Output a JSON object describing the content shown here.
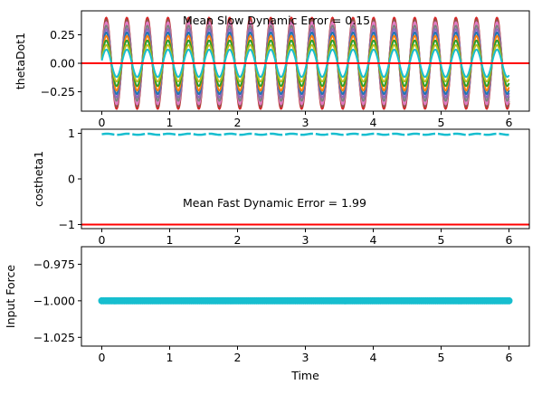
{
  "chart_data": [
    {
      "type": "line",
      "ylabel": "thetaDot1",
      "xlim": [
        -0.3,
        6.3
      ],
      "ylim": [
        -0.42,
        0.46
      ],
      "xticks": [
        0,
        1,
        2,
        3,
        4,
        5,
        6
      ],
      "xtick_labels": [
        "0",
        "1",
        "2",
        "3",
        "4",
        "5",
        "6"
      ],
      "yticks": [
        0.25,
        0.0,
        -0.25
      ],
      "ytick_labels": [
        "0.25",
        "0.00",
        "−0.25"
      ],
      "annotation": "Mean Slow Dynamic Error = 0.15",
      "reference_line": {
        "y": 0.0,
        "color": "#ff0000"
      },
      "oscillation": {
        "frequency": 3.3,
        "t_start": 0,
        "t_end": 6
      },
      "series_amplitudes": [
        0.4,
        0.38,
        0.36,
        0.33,
        0.3,
        0.27,
        0.24,
        0.2,
        0.16,
        0.12
      ],
      "series_colors": [
        "#d62728",
        "#8c564b",
        "#e377c2",
        "#7f7f7f",
        "#9467bd",
        "#1f77b4",
        "#ff7f0e",
        "#2ca02c",
        "#bcbd22",
        "#17becf"
      ]
    },
    {
      "type": "line",
      "ylabel": "costheta1",
      "xlim": [
        -0.3,
        6.3
      ],
      "ylim": [
        -1.09,
        1.09
      ],
      "xticks": [
        0,
        1,
        2,
        3,
        4,
        5,
        6
      ],
      "xtick_labels": [
        "0",
        "1",
        "2",
        "3",
        "4",
        "5",
        "6"
      ],
      "yticks": [
        1,
        0,
        -1
      ],
      "ytick_labels": [
        "1",
        "0",
        "−1"
      ],
      "annotation": "Mean Fast Dynamic Error = 1.99",
      "reference_line": {
        "y": -1.0,
        "color": "#ff0000"
      },
      "series_level": 0.98,
      "series_color": "#17becf"
    },
    {
      "type": "scatter",
      "xlabel": "Time",
      "ylabel": "Input Force",
      "xlim": [
        -0.3,
        6.3
      ],
      "ylim": [
        -1.031,
        -0.963
      ],
      "xticks": [
        0,
        1,
        2,
        3,
        4,
        5,
        6
      ],
      "xtick_labels": [
        "0",
        "1",
        "2",
        "3",
        "4",
        "5",
        "6"
      ],
      "yticks": [
        -0.975,
        -1.0,
        -1.025
      ],
      "ytick_labels": [
        "−0.975",
        "−1.000",
        "−1.025"
      ],
      "points": {
        "y": -1.0,
        "t_start": 0,
        "t_end": 6
      },
      "point_color": "#17becf"
    }
  ]
}
